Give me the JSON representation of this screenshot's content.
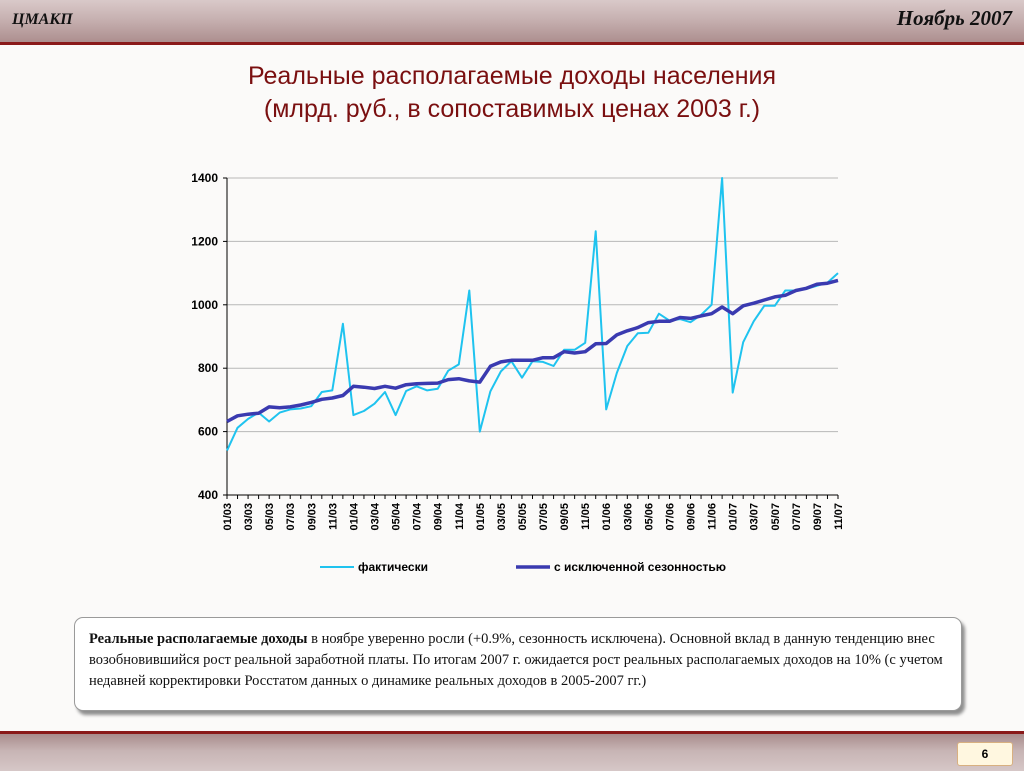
{
  "header": {
    "org": "ЦМАКП",
    "date": "Ноябрь 2007"
  },
  "title": {
    "line1": "Реальные располагаемые доходы населения",
    "line2": "(млрд. руб., в сопоставимых ценах 2003 г.)"
  },
  "chart_data": {
    "type": "line",
    "title": "Реальные располагаемые доходы населения (млрд. руб., в сопоставимых ценах 2003 г.)",
    "x": [
      "01/03",
      "02/03",
      "03/03",
      "04/03",
      "05/03",
      "06/03",
      "07/03",
      "08/03",
      "09/03",
      "10/03",
      "11/03",
      "12/03",
      "01/04",
      "02/04",
      "03/04",
      "04/04",
      "05/04",
      "06/04",
      "07/04",
      "08/04",
      "09/04",
      "10/04",
      "11/04",
      "12/04",
      "01/05",
      "02/05",
      "03/05",
      "04/05",
      "05/05",
      "06/05",
      "07/05",
      "08/05",
      "09/05",
      "10/05",
      "11/05",
      "12/05",
      "01/06",
      "02/06",
      "03/06",
      "04/06",
      "05/06",
      "06/06",
      "07/06",
      "08/06",
      "09/06",
      "10/06",
      "11/06",
      "12/06",
      "01/07",
      "02/07",
      "03/07",
      "04/07",
      "05/07",
      "06/07",
      "07/07",
      "08/07",
      "09/07",
      "10/07",
      "11/07"
    ],
    "x_tick_labels": [
      "01/03",
      "03/03",
      "05/03",
      "07/03",
      "09/03",
      "11/03",
      "01/04",
      "03/04",
      "05/04",
      "07/04",
      "09/04",
      "11/04",
      "01/05",
      "03/05",
      "05/05",
      "07/05",
      "09/05",
      "11/05",
      "01/06",
      "03/06",
      "05/06",
      "07/06",
      "09/06",
      "11/06",
      "01/07",
      "03/07",
      "05/07",
      "07/07",
      "09/07",
      "11/07"
    ],
    "yticks": [
      400,
      600,
      800,
      1000,
      1200,
      1400
    ],
    "ylim": [
      400,
      1400
    ],
    "grid": true,
    "legend_position": "bottom",
    "series": [
      {
        "name": "фактически",
        "color": "#1fc3ef",
        "values": [
          540,
          612,
          640,
          660,
          632,
          660,
          670,
          673,
          680,
          725,
          730,
          940,
          652,
          665,
          688,
          725,
          652,
          728,
          743,
          730,
          735,
          792,
          812,
          1045,
          600,
          727,
          790,
          822,
          770,
          822,
          820,
          807,
          858,
          858,
          880,
          1232,
          670,
          785,
          870,
          910,
          912,
          972,
          950,
          955,
          945,
          968,
          1000,
          1400,
          723,
          882,
          948,
          997,
          997,
          1045,
          1045,
          1050,
          1060,
          1070,
          1100
        ]
      },
      {
        "name": "с исключенной сезонностью",
        "color": "#3a3ab0",
        "values": [
          632,
          650,
          655,
          658,
          678,
          675,
          678,
          684,
          692,
          702,
          706,
          714,
          743,
          740,
          736,
          743,
          737,
          748,
          751,
          752,
          753,
          764,
          767,
          760,
          756,
          806,
          820,
          825,
          825,
          825,
          833,
          833,
          852,
          848,
          852,
          877,
          878,
          905,
          918,
          928,
          944,
          948,
          948,
          960,
          957,
          965,
          972,
          993,
          972,
          997,
          1005,
          1015,
          1025,
          1030,
          1045,
          1052,
          1065,
          1068,
          1077
        ]
      }
    ]
  },
  "note": {
    "bold": "Реальные располагаемые доходы",
    "text": " в ноябре уверенно росли (+0.9%, сезонность исключена). Основной вклад в данную тенденцию внес возобновившийся рост реальной заработной платы. По итогам 2007 г. ожидается рост реальных располагаемых доходов на 10% (с учетом недавней корректировки Росстатом данных о динамике реальных доходов в 2005-2007 гг.)"
  },
  "footer": {
    "page": "6"
  }
}
